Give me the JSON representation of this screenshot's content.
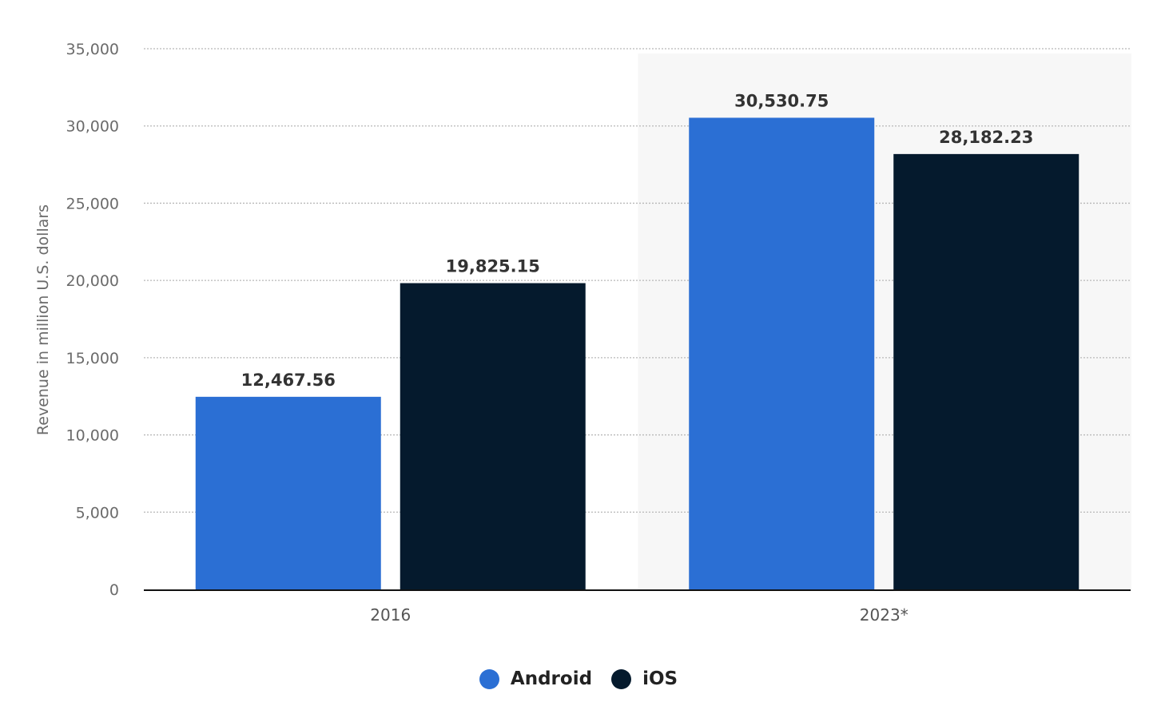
{
  "chart_data": {
    "type": "bar",
    "categories": [
      "2016",
      "2023*"
    ],
    "series": [
      {
        "name": "Android",
        "values": [
          12467.56,
          30530.75
        ],
        "labels": [
          "12,467.56",
          "30,530.75"
        ],
        "color": "#2b6fd4"
      },
      {
        "name": "iOS",
        "values": [
          19825.15,
          28182.23
        ],
        "labels": [
          "19,825.15",
          "28,182.23"
        ],
        "color": "#051a2d"
      }
    ],
    "ylabel": "Revenue in million U.S. dollars",
    "ylim": [
      0,
      35000
    ],
    "yticks": [
      0,
      5000,
      10000,
      15000,
      20000,
      25000,
      30000,
      35000
    ],
    "ytick_labels": [
      "0",
      "5,000",
      "10,000",
      "15,000",
      "20,000",
      "25,000",
      "30,000",
      "35,000"
    ],
    "grid": true,
    "highlighted_category": "2023*",
    "legend_position": "bottom-center"
  }
}
